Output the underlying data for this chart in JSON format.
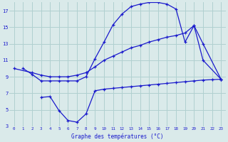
{
  "bg_color": "#daeaea",
  "grid_color": "#b0d0d0",
  "line_color": "#1a1acc",
  "title": "Graphe des températures (°C)",
  "xlim": [
    -0.5,
    23.5
  ],
  "ylim": [
    3,
    18
  ],
  "yticks": [
    3,
    5,
    7,
    9,
    11,
    13,
    15,
    17
  ],
  "xticks": [
    0,
    1,
    2,
    3,
    4,
    5,
    6,
    7,
    8,
    9,
    10,
    11,
    12,
    13,
    14,
    15,
    16,
    17,
    18,
    19,
    20,
    21,
    22,
    23
  ],
  "line1_x": [
    1,
    2,
    3,
    4,
    5,
    6,
    7,
    8,
    9,
    10,
    11,
    12,
    13,
    14,
    15,
    16,
    17,
    18,
    19,
    20,
    21,
    23
  ],
  "line1_y": [
    10.0,
    9.3,
    8.5,
    8.5,
    8.5,
    8.5,
    8.5,
    9.0,
    11.2,
    13.2,
    15.3,
    16.6,
    17.5,
    17.8,
    18.0,
    18.0,
    17.8,
    17.2,
    13.2,
    15.2,
    11.0,
    8.7
  ],
  "line2_x": [
    0,
    2,
    3,
    4,
    5,
    6,
    7,
    8,
    9,
    10,
    11,
    12,
    13,
    14,
    15,
    16,
    17,
    18,
    19,
    20,
    21,
    23
  ],
  "line2_y": [
    10.0,
    9.5,
    9.2,
    9.0,
    9.0,
    9.0,
    9.2,
    9.5,
    10.2,
    11.0,
    11.5,
    12.0,
    12.5,
    12.8,
    13.2,
    13.5,
    13.8,
    14.0,
    14.3,
    15.2,
    13.0,
    8.7
  ],
  "line3_x": [
    3,
    4,
    5,
    6,
    7,
    8,
    9,
    10,
    11,
    12,
    13,
    14,
    15,
    16,
    17,
    18,
    19,
    20,
    21,
    22,
    23
  ],
  "line3_y": [
    6.5,
    6.6,
    4.9,
    3.7,
    3.5,
    4.5,
    7.3,
    7.5,
    7.6,
    7.7,
    7.8,
    7.9,
    8.0,
    8.1,
    8.2,
    8.3,
    8.4,
    8.5,
    8.6,
    8.65,
    8.7
  ]
}
